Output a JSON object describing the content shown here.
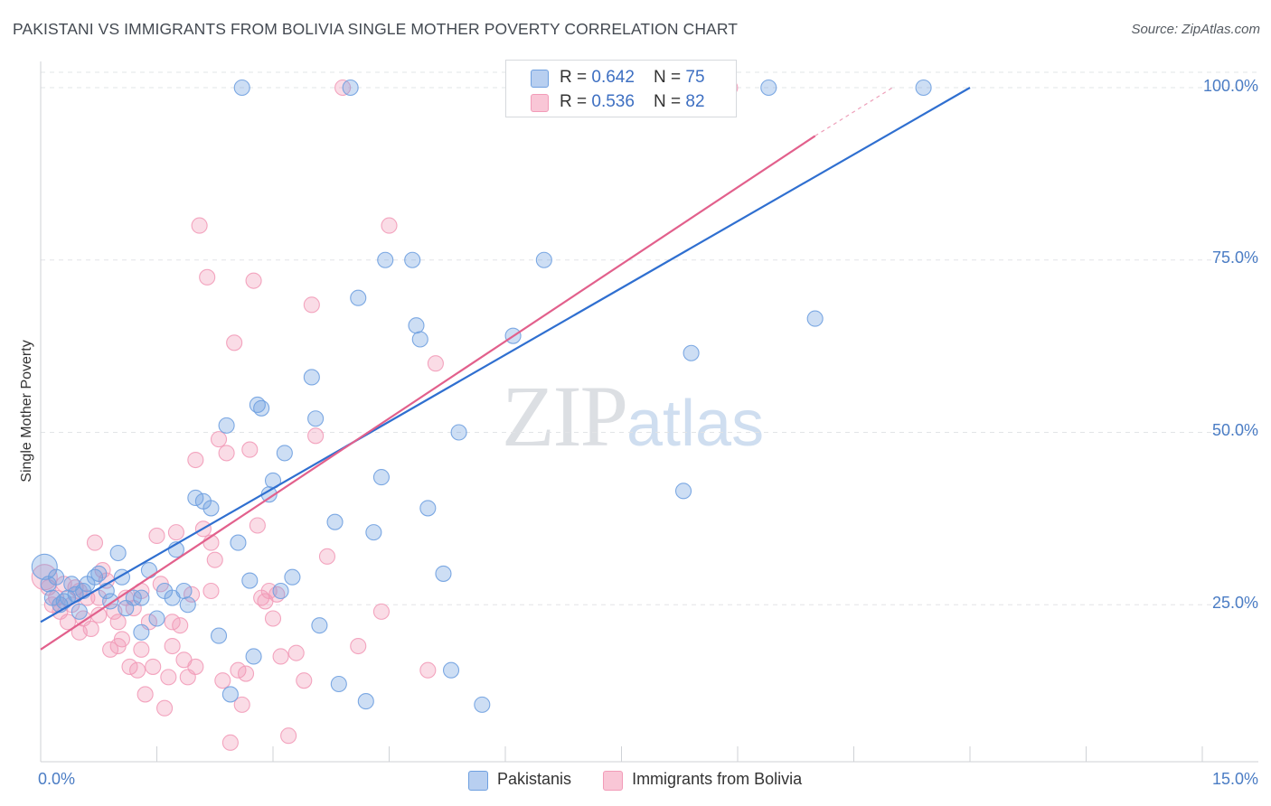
{
  "header": {
    "title": "PAKISTANI VS IMMIGRANTS FROM BOLIVIA SINGLE MOTHER POVERTY CORRELATION CHART",
    "source": "Source: ZipAtlas.com"
  },
  "watermark": {
    "zip": "ZIP",
    "atlas": "atlas"
  },
  "legend": {
    "rows": [
      {
        "r_label": "R = ",
        "r_value": "0.642",
        "n_label": "N = ",
        "n_value": "75"
      },
      {
        "r_label": "R = ",
        "r_value": "0.536",
        "n_label": "N = ",
        "n_value": "82"
      }
    ]
  },
  "chart_data": {
    "type": "scatter",
    "title": "PAKISTANI VS IMMIGRANTS FROM BOLIVIA SINGLE MOTHER POVERTY CORRELATION CHART",
    "xlabel": "",
    "ylabel": "Single Mother Poverty",
    "xlim": [
      0,
      15
    ],
    "ylim": [
      0,
      100
    ],
    "x_tick_labels": [
      "0.0%",
      "15.0%"
    ],
    "y_tick_labels": [
      "25.0%",
      "50.0%",
      "75.0%",
      "100.0%"
    ],
    "y_ticks": [
      25,
      50,
      75,
      100
    ],
    "grid": true,
    "legend_position": "top-center",
    "colors": {
      "pakistanis": "#6fa0e0",
      "bolivia": "#f29bb8",
      "pak_line": "#2f6fd0",
      "bol_line": "#e2608c"
    },
    "series": [
      {
        "name": "Pakistanis",
        "r": 0.642,
        "n": 75,
        "trend": {
          "x0": 0,
          "y0": 22.5,
          "x1": 12.0,
          "y1": 100
        },
        "points": [
          [
            0.05,
            30.5,
            14
          ],
          [
            0.1,
            28,
            9
          ],
          [
            0.15,
            26,
            9
          ],
          [
            0.2,
            29,
            9
          ],
          [
            0.25,
            25,
            9
          ],
          [
            0.35,
            26,
            9
          ],
          [
            0.4,
            28,
            9
          ],
          [
            0.5,
            24,
            9
          ],
          [
            0.55,
            27,
            9
          ],
          [
            0.6,
            28,
            9
          ],
          [
            0.7,
            29,
            9
          ],
          [
            0.75,
            29.5,
            9
          ],
          [
            0.85,
            27,
            9
          ],
          [
            1.0,
            32.5,
            9
          ],
          [
            1.1,
            24.5,
            9
          ],
          [
            1.2,
            26,
            9
          ],
          [
            1.3,
            26,
            9
          ],
          [
            1.4,
            30,
            9
          ],
          [
            1.6,
            27,
            9
          ],
          [
            1.7,
            26,
            9
          ],
          [
            1.5,
            23,
            9
          ],
          [
            1.3,
            21,
            9
          ],
          [
            1.75,
            33,
            9
          ],
          [
            1.85,
            27,
            9
          ],
          [
            1.9,
            25,
            9
          ],
          [
            2.0,
            40.5,
            9
          ],
          [
            2.1,
            40,
            9
          ],
          [
            2.2,
            39,
            9
          ],
          [
            2.3,
            20.5,
            9
          ],
          [
            2.4,
            51,
            9
          ],
          [
            2.45,
            12,
            9
          ],
          [
            2.55,
            34,
            9
          ],
          [
            2.6,
            100,
            9
          ],
          [
            2.7,
            28.5,
            9
          ],
          [
            2.75,
            17.5,
            9
          ],
          [
            2.8,
            54,
            9
          ],
          [
            2.85,
            53.5,
            9
          ],
          [
            2.95,
            41,
            9
          ],
          [
            3.0,
            43,
            9
          ],
          [
            3.1,
            27,
            9
          ],
          [
            3.15,
            47,
            9
          ],
          [
            3.25,
            29,
            9
          ],
          [
            3.5,
            58,
            9
          ],
          [
            3.55,
            52,
            9
          ],
          [
            3.6,
            22,
            9
          ],
          [
            3.8,
            37,
            9
          ],
          [
            3.85,
            13.5,
            9
          ],
          [
            4.0,
            100,
            9
          ],
          [
            4.1,
            69.5,
            9
          ],
          [
            4.2,
            11,
            9
          ],
          [
            4.3,
            35.5,
            9
          ],
          [
            4.4,
            43.5,
            9
          ],
          [
            4.45,
            75,
            9
          ],
          [
            4.8,
            75,
            9
          ],
          [
            4.85,
            65.5,
            9
          ],
          [
            4.9,
            63.5,
            9
          ],
          [
            5.0,
            39,
            9
          ],
          [
            5.2,
            29.5,
            9
          ],
          [
            5.3,
            15.5,
            9
          ],
          [
            5.4,
            50,
            9
          ],
          [
            5.7,
            10.5,
            9
          ],
          [
            6.1,
            64,
            9
          ],
          [
            6.5,
            75,
            9
          ],
          [
            7.0,
            100,
            9
          ],
          [
            7.2,
            100,
            9
          ],
          [
            7.3,
            100,
            9
          ],
          [
            8.3,
            41.5,
            9
          ],
          [
            8.4,
            61.5,
            9
          ],
          [
            9.4,
            100,
            9
          ],
          [
            10.0,
            66.5,
            9
          ],
          [
            11.4,
            100,
            9
          ],
          [
            0.3,
            25.5,
            9
          ],
          [
            0.45,
            26.5,
            9
          ],
          [
            0.9,
            25.5,
            9
          ],
          [
            1.05,
            29,
            9
          ]
        ]
      },
      {
        "name": "Immigrants from Bolivia",
        "r": 0.536,
        "n": 82,
        "trend": {
          "x0": 0,
          "y0": 18.5,
          "x1": 10.0,
          "y1": 93,
          "dash_to": {
            "x": 11.0,
            "y": 100
          }
        },
        "points": [
          [
            0.05,
            29,
            14
          ],
          [
            0.1,
            27.5,
            9
          ],
          [
            0.2,
            26,
            9
          ],
          [
            0.3,
            28,
            9
          ],
          [
            0.35,
            22.5,
            9
          ],
          [
            0.4,
            25,
            9
          ],
          [
            0.45,
            27.5,
            9
          ],
          [
            0.5,
            21,
            9
          ],
          [
            0.55,
            23,
            9
          ],
          [
            0.6,
            26,
            9
          ],
          [
            0.65,
            21.5,
            9
          ],
          [
            0.7,
            34,
            9
          ],
          [
            0.75,
            23.5,
            9
          ],
          [
            0.8,
            30,
            9
          ],
          [
            0.85,
            28.5,
            9
          ],
          [
            0.9,
            18.5,
            9
          ],
          [
            0.95,
            24,
            9
          ],
          [
            1.0,
            22.5,
            9
          ],
          [
            1.05,
            20,
            9
          ],
          [
            1.1,
            26,
            9
          ],
          [
            1.15,
            16,
            9
          ],
          [
            1.2,
            24.5,
            9
          ],
          [
            1.25,
            15.5,
            9
          ],
          [
            1.3,
            18.5,
            9
          ],
          [
            1.35,
            12,
            9
          ],
          [
            1.4,
            22.5,
            9
          ],
          [
            1.45,
            16,
            9
          ],
          [
            1.5,
            35,
            9
          ],
          [
            1.55,
            28,
            9
          ],
          [
            1.6,
            10,
            9
          ],
          [
            1.65,
            14.5,
            9
          ],
          [
            1.7,
            22.5,
            9
          ],
          [
            1.75,
            35.5,
            9
          ],
          [
            1.8,
            22,
            9
          ],
          [
            1.85,
            17,
            9
          ],
          [
            1.9,
            14.5,
            9
          ],
          [
            1.95,
            26.5,
            9
          ],
          [
            2.0,
            46,
            9
          ],
          [
            2.05,
            80,
            9
          ],
          [
            2.1,
            36,
            9
          ],
          [
            2.15,
            72.5,
            9
          ],
          [
            2.2,
            34,
            9
          ],
          [
            2.25,
            31.5,
            9
          ],
          [
            2.3,
            49,
            9
          ],
          [
            2.35,
            14,
            9
          ],
          [
            2.4,
            47,
            9
          ],
          [
            2.45,
            5,
            9
          ],
          [
            2.5,
            63,
            9
          ],
          [
            2.55,
            15.5,
            9
          ],
          [
            2.6,
            10.5,
            9
          ],
          [
            2.65,
            15,
            9
          ],
          [
            2.7,
            47.5,
            9
          ],
          [
            2.75,
            72,
            9
          ],
          [
            2.8,
            36.5,
            9
          ],
          [
            2.85,
            26,
            9
          ],
          [
            2.9,
            25.5,
            9
          ],
          [
            2.95,
            27,
            9
          ],
          [
            3.0,
            23,
            9
          ],
          [
            3.05,
            26.5,
            9
          ],
          [
            3.1,
            17.5,
            9
          ],
          [
            3.2,
            6,
            9
          ],
          [
            3.3,
            18,
            9
          ],
          [
            3.4,
            14,
            9
          ],
          [
            3.5,
            68.5,
            9
          ],
          [
            3.55,
            49.5,
            9
          ],
          [
            3.7,
            32,
            9
          ],
          [
            3.9,
            100,
            9
          ],
          [
            4.1,
            19,
            9
          ],
          [
            4.4,
            24,
            9
          ],
          [
            4.5,
            80,
            9
          ],
          [
            5.0,
            15.5,
            9
          ],
          [
            5.1,
            60,
            9
          ],
          [
            8.9,
            100,
            9
          ],
          [
            0.15,
            25,
            9
          ],
          [
            0.25,
            24,
            9
          ],
          [
            0.5,
            27,
            9
          ],
          [
            0.75,
            26,
            9
          ],
          [
            1.0,
            19,
            9
          ],
          [
            1.3,
            27,
            9
          ],
          [
            1.7,
            19,
            9
          ],
          [
            2.0,
            16,
            9
          ],
          [
            2.2,
            27,
            9
          ]
        ]
      }
    ]
  },
  "bottom_legend": {
    "items": [
      "Pakistanis",
      "Immigrants from Bolivia"
    ]
  }
}
